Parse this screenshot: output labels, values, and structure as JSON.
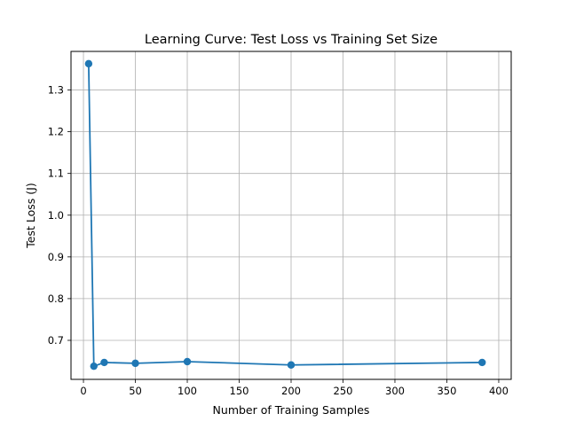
{
  "chart_data": {
    "type": "line",
    "title": "Learning Curve: Test Loss vs Training Set Size",
    "xlabel": "Number of Training Samples",
    "ylabel": "Test Loss (J)",
    "xlim": [
      -12,
      412
    ],
    "ylim": [
      0.6065,
      1.3925
    ],
    "xticks": [
      0,
      50,
      100,
      150,
      200,
      250,
      300,
      350,
      400
    ],
    "yticks": [
      0.7,
      0.8,
      0.9,
      1.0,
      1.1,
      1.2,
      1.3
    ],
    "xtick_labels": [
      "0",
      "50",
      "100",
      "150",
      "200",
      "250",
      "300",
      "350",
      "400"
    ],
    "ytick_labels": [
      "0.7",
      "0.8",
      "0.9",
      "1.0",
      "1.1",
      "1.2",
      "1.3"
    ],
    "grid": true,
    "series": [
      {
        "color": "#1f77b4",
        "marker": "circle",
        "x": [
          5,
          10,
          20,
          50,
          100,
          200,
          384
        ],
        "y": [
          1.363,
          0.638,
          0.647,
          0.645,
          0.649,
          0.641,
          0.647
        ]
      }
    ]
  }
}
